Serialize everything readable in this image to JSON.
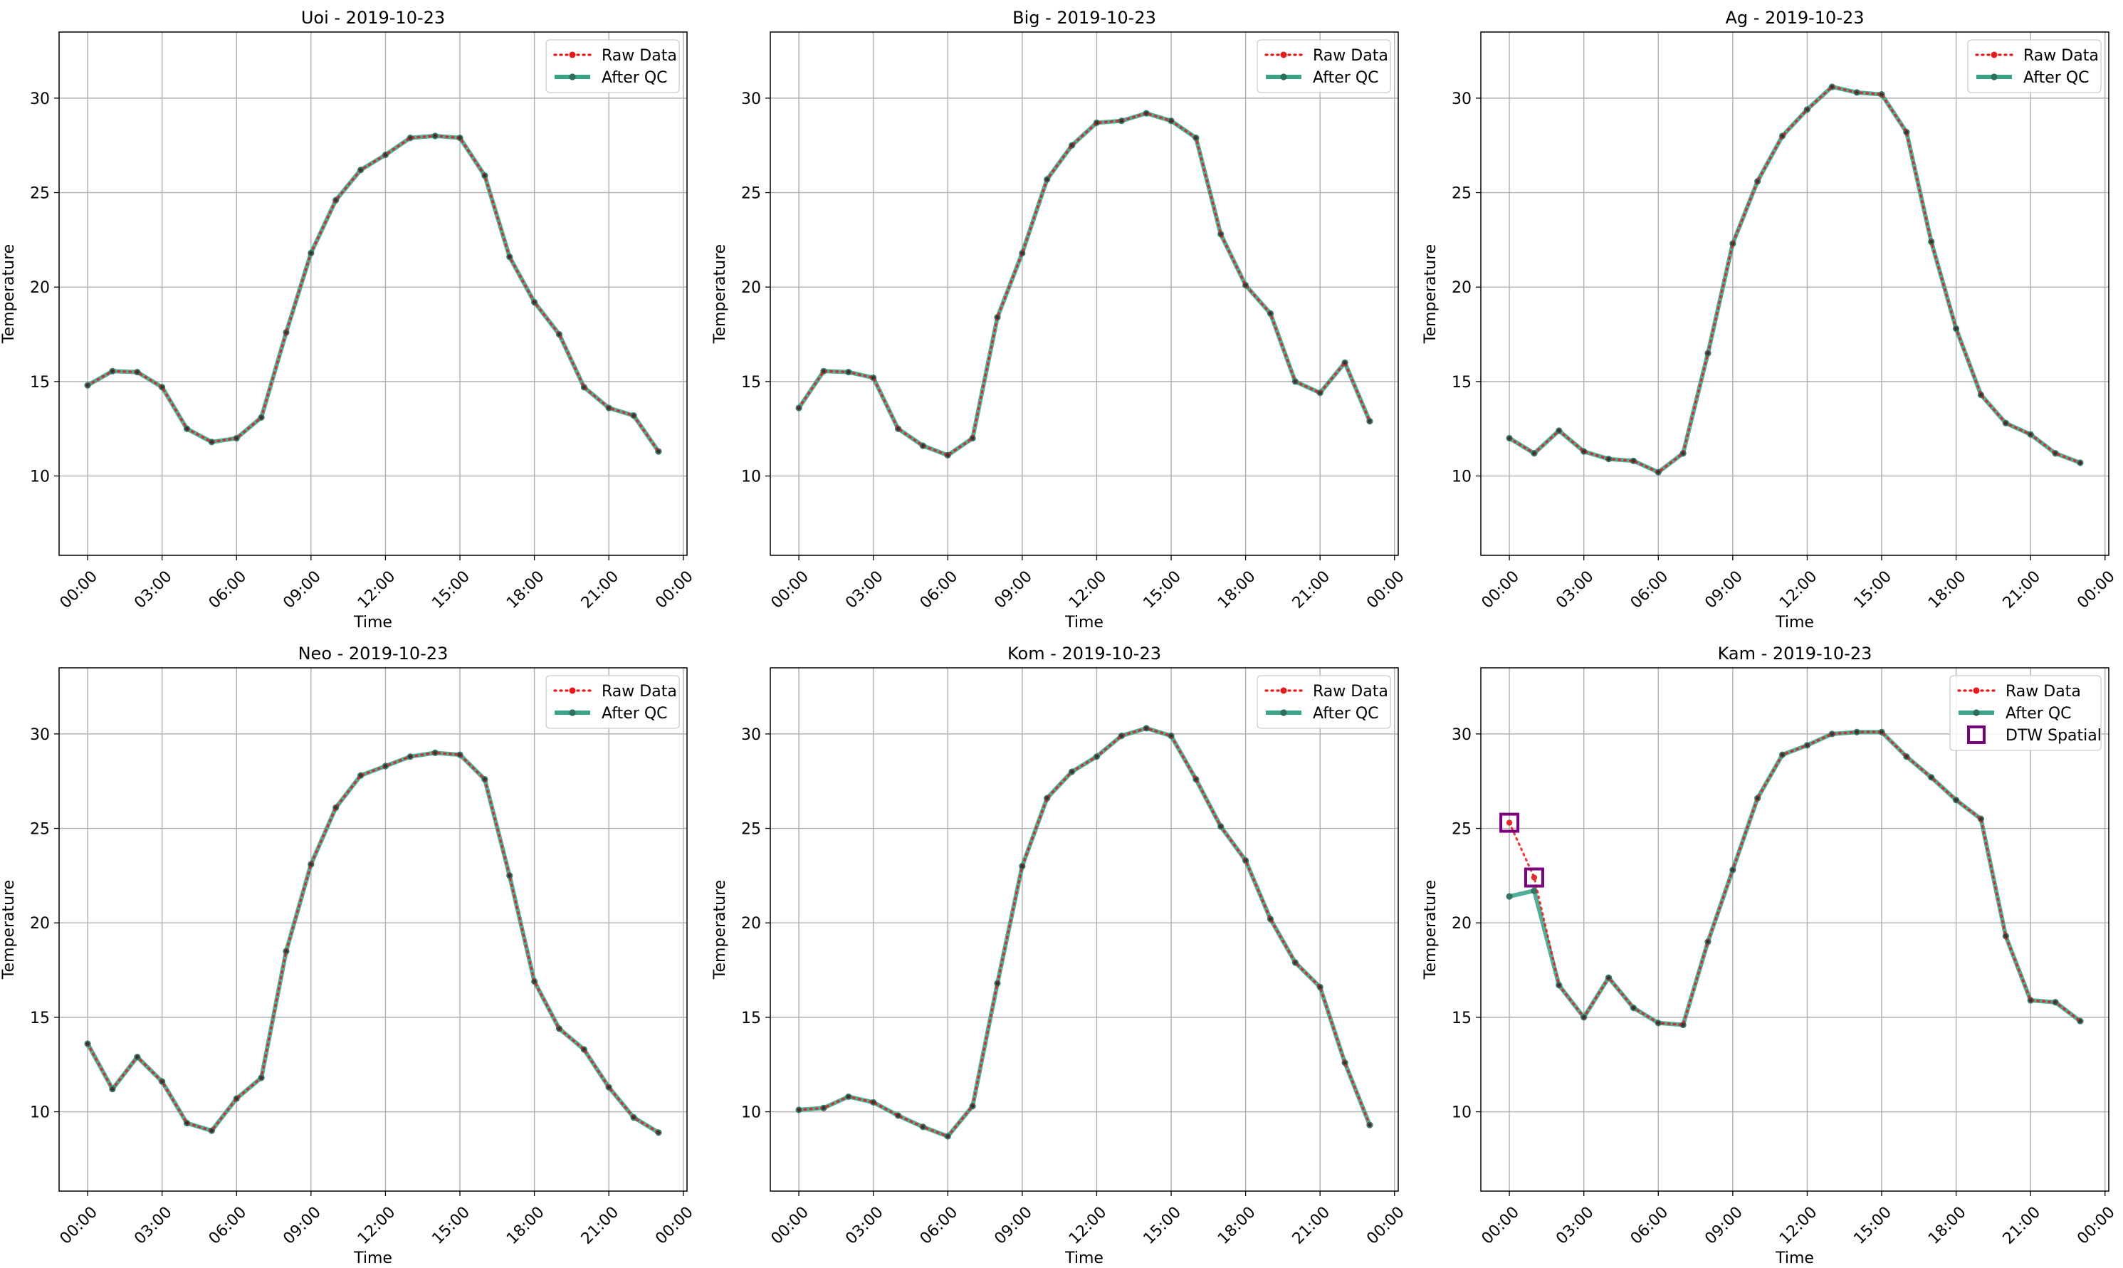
{
  "figure": {
    "y_label": "Temperature",
    "x_label": "Time",
    "x_ticks": [
      "00:00",
      "03:00",
      "06:00",
      "09:00",
      "12:00",
      "15:00",
      "18:00",
      "21:00",
      "00:00"
    ],
    "y_ticks": [
      10,
      15,
      20,
      25,
      30
    ],
    "legend": {
      "raw": "Raw Data",
      "qc": "After QC",
      "dtw": "DTW Spatial"
    },
    "colors": {
      "raw": "#e41a1c",
      "qc": "#3aa489",
      "qc_marker": "#2f6e5c",
      "dtw": "#7b007b",
      "grid": "#b0b0b0"
    }
  },
  "chart_data": [
    {
      "type": "line",
      "title": "Uoi - 2019-10-23",
      "xlabel": "Time",
      "ylabel": "Temperature",
      "xlim": [
        -1.15,
        24.15
      ],
      "ylim": [
        5.8,
        33.5
      ],
      "x": [
        0,
        1,
        2,
        3,
        4,
        5,
        6,
        7,
        8,
        9,
        10,
        11,
        12,
        13,
        14,
        15,
        16,
        17,
        18,
        19,
        20,
        21,
        22,
        23
      ],
      "series": [
        {
          "name": "Raw Data",
          "values": [
            14.8,
            15.55,
            15.5,
            14.7,
            12.5,
            11.8,
            12.0,
            13.1,
            17.6,
            21.8,
            24.6,
            26.2,
            27.0,
            27.9,
            28.0,
            27.9,
            25.9,
            21.6,
            19.2,
            17.5,
            14.7,
            13.6,
            13.2,
            11.3
          ]
        },
        {
          "name": "After QC",
          "values": [
            14.8,
            15.55,
            15.5,
            14.7,
            12.5,
            11.8,
            12.0,
            13.1,
            17.6,
            21.8,
            24.6,
            26.2,
            27.0,
            27.9,
            28.0,
            27.9,
            25.9,
            21.6,
            19.2,
            17.5,
            14.7,
            13.6,
            13.2,
            11.3
          ]
        }
      ],
      "dtw_points": [],
      "grid": true,
      "legend": "upper right"
    },
    {
      "type": "line",
      "title": "Big - 2019-10-23",
      "xlabel": "Time",
      "ylabel": "Temperature",
      "xlim": [
        -1.15,
        24.15
      ],
      "ylim": [
        5.8,
        33.5
      ],
      "x": [
        0,
        1,
        2,
        3,
        4,
        5,
        6,
        7,
        8,
        9,
        10,
        11,
        12,
        13,
        14,
        15,
        16,
        17,
        18,
        19,
        20,
        21,
        22,
        23
      ],
      "series": [
        {
          "name": "Raw Data",
          "values": [
            13.6,
            15.55,
            15.5,
            15.2,
            12.5,
            11.6,
            11.1,
            12.0,
            18.4,
            21.8,
            25.7,
            27.5,
            28.7,
            28.8,
            29.2,
            28.8,
            27.9,
            22.8,
            20.1,
            18.6,
            15.0,
            14.4,
            16.0,
            12.9
          ]
        },
        {
          "name": "After QC",
          "values": [
            13.6,
            15.55,
            15.5,
            15.2,
            12.5,
            11.6,
            11.1,
            12.0,
            18.4,
            21.8,
            25.7,
            27.5,
            28.7,
            28.8,
            29.2,
            28.8,
            27.9,
            22.8,
            20.1,
            18.6,
            15.0,
            14.4,
            16.0,
            12.9
          ]
        }
      ],
      "dtw_points": [],
      "grid": true,
      "legend": "upper right"
    },
    {
      "type": "line",
      "title": "Ag - 2019-10-23",
      "xlabel": "Time",
      "ylabel": "Temperature",
      "xlim": [
        -1.15,
        24.15
      ],
      "ylim": [
        5.8,
        33.5
      ],
      "x": [
        0,
        1,
        2,
        3,
        4,
        5,
        6,
        7,
        8,
        9,
        10,
        11,
        12,
        13,
        14,
        15,
        16,
        17,
        18,
        19,
        20,
        21,
        22,
        23
      ],
      "series": [
        {
          "name": "Raw Data",
          "values": [
            12.0,
            11.2,
            12.4,
            11.3,
            10.9,
            10.8,
            10.2,
            11.2,
            16.5,
            22.3,
            25.6,
            28.0,
            29.4,
            30.6,
            30.3,
            30.2,
            28.2,
            22.4,
            17.8,
            14.3,
            12.8,
            12.2,
            11.2,
            10.7
          ]
        },
        {
          "name": "After QC",
          "values": [
            12.0,
            11.2,
            12.4,
            11.3,
            10.9,
            10.8,
            10.2,
            11.2,
            16.5,
            22.3,
            25.6,
            28.0,
            29.4,
            30.6,
            30.3,
            30.2,
            28.2,
            22.4,
            17.8,
            14.3,
            12.8,
            12.2,
            11.2,
            10.7
          ]
        }
      ],
      "dtw_points": [],
      "grid": true,
      "legend": "upper right"
    },
    {
      "type": "line",
      "title": "Neo - 2019-10-23",
      "xlabel": "Time",
      "ylabel": "Temperature",
      "xlim": [
        -1.15,
        24.15
      ],
      "ylim": [
        5.8,
        33.5
      ],
      "x": [
        0,
        1,
        2,
        3,
        4,
        5,
        6,
        7,
        8,
        9,
        10,
        11,
        12,
        13,
        14,
        15,
        16,
        17,
        18,
        19,
        20,
        21,
        22,
        23
      ],
      "series": [
        {
          "name": "Raw Data",
          "values": [
            13.6,
            11.2,
            12.9,
            11.6,
            9.4,
            9.0,
            10.7,
            11.8,
            18.5,
            23.1,
            26.1,
            27.8,
            28.3,
            28.8,
            29.0,
            28.9,
            27.6,
            22.5,
            16.9,
            14.4,
            13.3,
            11.3,
            9.7,
            8.9
          ]
        },
        {
          "name": "After QC",
          "values": [
            13.6,
            11.2,
            12.9,
            11.6,
            9.4,
            9.0,
            10.7,
            11.8,
            18.5,
            23.1,
            26.1,
            27.8,
            28.3,
            28.8,
            29.0,
            28.9,
            27.6,
            22.5,
            16.9,
            14.4,
            13.3,
            11.3,
            9.7,
            8.9
          ]
        }
      ],
      "dtw_points": [],
      "grid": true,
      "legend": "upper right"
    },
    {
      "type": "line",
      "title": "Kom - 2019-10-23",
      "xlabel": "Time",
      "ylabel": "Temperature",
      "xlim": [
        -1.15,
        24.15
      ],
      "ylim": [
        5.8,
        33.5
      ],
      "x": [
        0,
        1,
        2,
        3,
        4,
        5,
        6,
        7,
        8,
        9,
        10,
        11,
        12,
        13,
        14,
        15,
        16,
        17,
        18,
        19,
        20,
        21,
        22,
        23
      ],
      "series": [
        {
          "name": "Raw Data",
          "values": [
            10.1,
            10.2,
            10.8,
            10.5,
            9.8,
            9.2,
            8.7,
            10.3,
            16.8,
            23.0,
            26.6,
            28.0,
            28.8,
            29.9,
            30.3,
            29.9,
            27.6,
            25.1,
            23.3,
            20.2,
            17.9,
            16.6,
            12.6,
            9.3
          ]
        },
        {
          "name": "After QC",
          "values": [
            10.1,
            10.2,
            10.8,
            10.5,
            9.8,
            9.2,
            8.7,
            10.3,
            16.8,
            23.0,
            26.6,
            28.0,
            28.8,
            29.9,
            30.3,
            29.9,
            27.6,
            25.1,
            23.3,
            20.2,
            17.9,
            16.6,
            12.6,
            9.3
          ]
        }
      ],
      "dtw_points": [],
      "grid": true,
      "legend": "upper right"
    },
    {
      "type": "line",
      "title": "Kam - 2019-10-23",
      "xlabel": "Time",
      "ylabel": "Temperature",
      "xlim": [
        -1.15,
        24.15
      ],
      "ylim": [
        5.8,
        33.5
      ],
      "x": [
        0,
        1,
        2,
        3,
        4,
        5,
        6,
        7,
        8,
        9,
        10,
        11,
        12,
        13,
        14,
        15,
        16,
        17,
        18,
        19,
        20,
        21,
        22,
        23
      ],
      "series": [
        {
          "name": "Raw Data",
          "values": [
            25.3,
            22.4,
            16.7,
            15.0,
            17.1,
            15.5,
            14.7,
            14.6,
            19.0,
            22.8,
            26.6,
            28.9,
            29.4,
            30.0,
            30.1,
            30.1,
            28.8,
            27.7,
            26.5,
            25.5,
            19.3,
            15.9,
            15.8,
            14.8
          ]
        },
        {
          "name": "After QC",
          "values": [
            21.4,
            21.7,
            16.7,
            15.0,
            17.1,
            15.5,
            14.7,
            14.6,
            19.0,
            22.8,
            26.6,
            28.9,
            29.4,
            30.0,
            30.1,
            30.1,
            28.8,
            27.7,
            26.5,
            25.5,
            19.3,
            15.9,
            15.8,
            14.8
          ]
        }
      ],
      "dtw_points": [
        {
          "x": 0,
          "y": 25.3
        },
        {
          "x": 1,
          "y": 22.4
        }
      ],
      "grid": true,
      "legend": "upper right"
    }
  ]
}
